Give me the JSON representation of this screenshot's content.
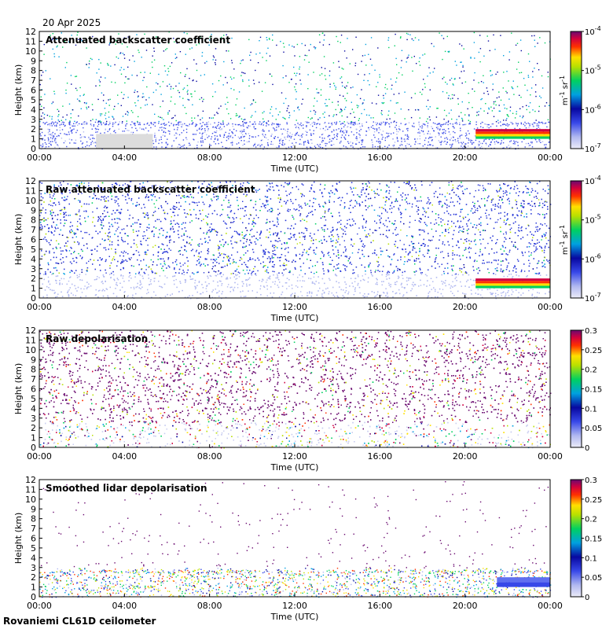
{
  "header": {
    "date": "20 Apr 2025"
  },
  "footer": {
    "label": "Rovaniemi CL61D ceilometer"
  },
  "chart_data": [
    {
      "type": "heatmap",
      "title": "Attenuated backscatter coefficient",
      "xlabel": "Time (UTC)",
      "ylabel": "Height (km)",
      "xticks": [
        "00:00",
        "04:00",
        "08:00",
        "12:00",
        "16:00",
        "20:00",
        "00:00"
      ],
      "yticks": [
        "0",
        "1",
        "2",
        "3",
        "4",
        "5",
        "6",
        "7",
        "8",
        "9",
        "10",
        "11",
        "12"
      ],
      "ylim": [
        0,
        12
      ],
      "colorbar": {
        "scale": "log",
        "ticks": [
          "10-7",
          "10-6",
          "10-5",
          "10-4"
        ],
        "label": "m-1 sr-1",
        "range": [
          1e-07,
          0.0001
        ]
      },
      "features": [
        {
          "feature": "noisy scatter above boundary layer",
          "time_range": [
            "00:00",
            "00:00"
          ],
          "height_range_km": [
            2.5,
            12
          ]
        },
        {
          "feature": "low cloud layer",
          "time_range": [
            "20:30",
            "00:00"
          ],
          "height_range_km": [
            1.0,
            2.0
          ]
        },
        {
          "feature": "no-data gap",
          "time_range": [
            "02:40",
            "05:20"
          ],
          "height_range_km": [
            0,
            1.5
          ]
        }
      ]
    },
    {
      "type": "heatmap",
      "title": "Raw attenuated backscatter coefficient",
      "xlabel": "Time (UTC)",
      "ylabel": "Height (km)",
      "xticks": [
        "00:00",
        "04:00",
        "08:00",
        "12:00",
        "16:00",
        "20:00",
        "00:00"
      ],
      "yticks": [
        "0",
        "1",
        "2",
        "3",
        "4",
        "5",
        "6",
        "7",
        "8",
        "9",
        "10",
        "11",
        "12"
      ],
      "ylim": [
        0,
        12
      ],
      "colorbar": {
        "scale": "log",
        "ticks": [
          "10-7",
          "10-6",
          "10-5",
          "10-4"
        ],
        "label": "m-1 sr-1",
        "range": [
          1e-07,
          0.0001
        ]
      },
      "features": [
        {
          "feature": "dense noise",
          "time_range": [
            "00:00",
            "00:00"
          ],
          "height_range_km": [
            0,
            12
          ]
        },
        {
          "feature": "low cloud layer",
          "time_range": [
            "20:30",
            "00:00"
          ],
          "height_range_km": [
            1.0,
            2.0
          ]
        }
      ]
    },
    {
      "type": "heatmap",
      "title": "Raw depolarisation",
      "xlabel": "Time (UTC)",
      "ylabel": "Height (km)",
      "xticks": [
        "00:00",
        "04:00",
        "08:00",
        "12:00",
        "16:00",
        "20:00",
        "00:00"
      ],
      "yticks": [
        "0",
        "1",
        "2",
        "3",
        "4",
        "5",
        "6",
        "7",
        "8",
        "9",
        "10",
        "11",
        "12"
      ],
      "ylim": [
        0,
        12
      ],
      "colorbar": {
        "scale": "linear",
        "ticks": [
          "0",
          "0.05",
          "0.1",
          "0.15",
          "0.2",
          "0.25",
          "0.3"
        ],
        "range": [
          0,
          0.3
        ]
      },
      "features": [
        {
          "feature": "saturated noise",
          "time_range": [
            "00:00",
            "00:00"
          ],
          "height_range_km": [
            2.5,
            12
          ]
        }
      ]
    },
    {
      "type": "heatmap",
      "title": "Smoothed lidar depolarisation",
      "xlabel": "Time (UTC)",
      "ylabel": "Height (km)",
      "xticks": [
        "00:00",
        "04:00",
        "08:00",
        "12:00",
        "16:00",
        "20:00",
        "00:00"
      ],
      "yticks": [
        "0",
        "1",
        "2",
        "3",
        "4",
        "5",
        "6",
        "7",
        "8",
        "9",
        "10",
        "11",
        "12"
      ],
      "ylim": [
        0,
        12
      ],
      "colorbar": {
        "scale": "linear",
        "ticks": [
          "0",
          "0.05",
          "0.1",
          "0.15",
          "0.2",
          "0.25",
          "0.3"
        ],
        "range": [
          0,
          0.3
        ]
      },
      "features": [
        {
          "feature": "boundary layer aerosol",
          "time_range": [
            "00:00",
            "00:00"
          ],
          "height_range_km": [
            0.5,
            3.0
          ]
        },
        {
          "feature": "cloud layer low depolarisation",
          "time_range": [
            "21:30",
            "00:00"
          ],
          "height_range_km": [
            1.0,
            2.0
          ]
        }
      ]
    }
  ]
}
